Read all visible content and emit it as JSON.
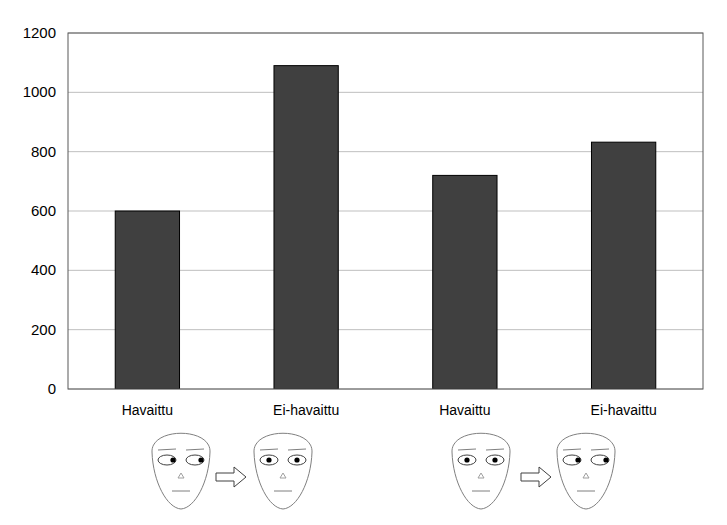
{
  "chart_data": {
    "type": "bar",
    "categories": [
      "Havaittu",
      "Ei-havaittu",
      "Havaittu",
      "Ei-havaittu"
    ],
    "values": [
      600,
      1090,
      720,
      832
    ],
    "color": "#404040",
    "ylim": [
      0,
      1200
    ],
    "yticks": [
      0,
      200,
      400,
      600,
      800,
      1000,
      1200
    ],
    "grid": true
  }
}
